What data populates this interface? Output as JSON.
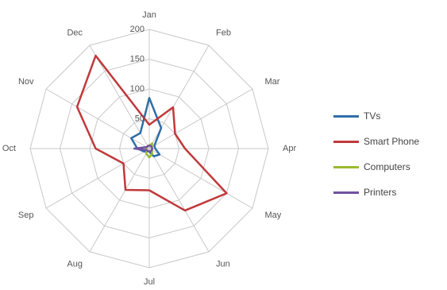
{
  "chart_data": {
    "type": "radar",
    "categories": [
      "Jan",
      "Feb",
      "Mar",
      "Apr",
      "May",
      "Jun",
      "Jul",
      "Aug",
      "Sep",
      "Oct",
      "Nov",
      "Dec"
    ],
    "rlim": [
      0,
      200
    ],
    "ticks": [
      50,
      100,
      150,
      200
    ],
    "tick_labels": [
      "50",
      "100",
      "150",
      "200"
    ],
    "grid": true,
    "legend_position": "right",
    "series": [
      {
        "name": "TVs",
        "color": "#2f6ea8",
        "values": [
          85,
          40,
          10,
          10,
          20,
          15,
          5,
          5,
          10,
          20,
          35,
          30
        ]
      },
      {
        "name": "Smart Phone",
        "color": "#c0393b",
        "values": [
          40,
          80,
          50,
          60,
          150,
          120,
          70,
          80,
          50,
          90,
          140,
          180
        ]
      },
      {
        "name": "Computers",
        "color": "#9bbb2f",
        "values": [
          5,
          10,
          5,
          5,
          5,
          10,
          15,
          10,
          5,
          5,
          5,
          5
        ]
      },
      {
        "name": "Printers",
        "color": "#7051a0",
        "values": [
          5,
          5,
          5,
          5,
          5,
          5,
          5,
          5,
          5,
          25,
          5,
          5
        ]
      }
    ]
  }
}
